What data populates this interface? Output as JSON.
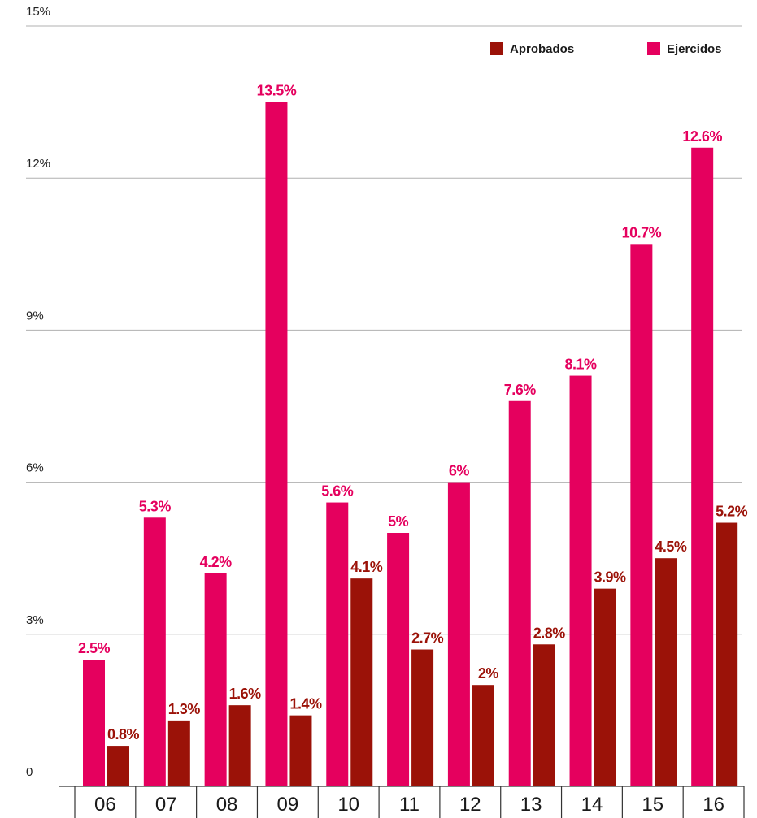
{
  "chart_data": {
    "type": "bar",
    "categories": [
      "06",
      "07",
      "08",
      "09",
      "10",
      "11",
      "12",
      "13",
      "14",
      "15",
      "16"
    ],
    "series": [
      {
        "name": "Ejercidos",
        "color": "#e5005e",
        "values": [
          2.5,
          5.3,
          4.2,
          13.5,
          5.6,
          5,
          6,
          7.6,
          8.1,
          10.7,
          12.6
        ],
        "labels": [
          "2.5%",
          "5.3%",
          "4.2%",
          "13.5%",
          "5.6%",
          "5%",
          "6%",
          "7.6%",
          "8.1%",
          "10.7%",
          "12.6%"
        ]
      },
      {
        "name": "Aprobados",
        "color": "#9b1208",
        "values": [
          0.8,
          1.3,
          1.6,
          1.4,
          4.1,
          2.7,
          2,
          2.8,
          3.9,
          4.5,
          5.2
        ],
        "labels": [
          "0.8%",
          "1.3%",
          "1.6%",
          "1.4%",
          "4.1%",
          "2.7%",
          "2%",
          "2.8%",
          "3.9%",
          "4.5%",
          "5.2%"
        ]
      }
    ],
    "legend": {
      "placement": "top-right",
      "order": [
        "Aprobados",
        "Ejercidos"
      ]
    },
    "yticks": [
      {
        "value": 0,
        "label": "0"
      },
      {
        "value": 3,
        "label": "3%"
      },
      {
        "value": 6,
        "label": "6%"
      },
      {
        "value": 9,
        "label": "9%"
      },
      {
        "value": 12,
        "label": "12%"
      },
      {
        "value": 15,
        "label": "15%"
      }
    ],
    "ylim": [
      0,
      15
    ],
    "grid": true,
    "title": "",
    "xlabel": "",
    "ylabel": ""
  }
}
